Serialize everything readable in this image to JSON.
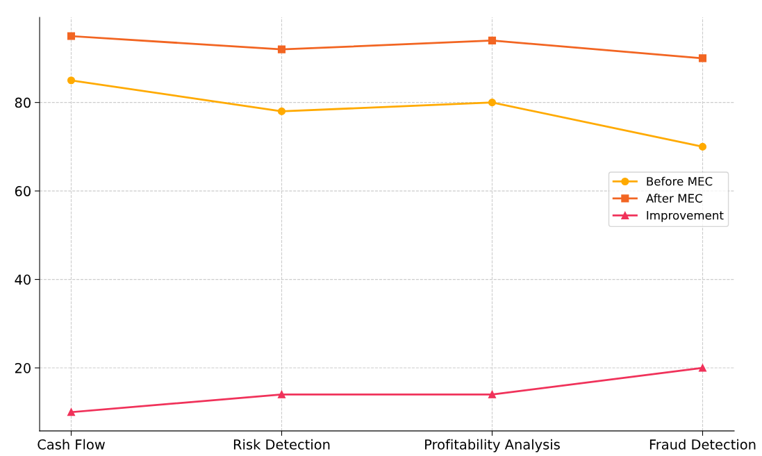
{
  "chart_data": {
    "type": "line",
    "categories": [
      "Cash Flow",
      "Risk Detection",
      "Profitability Analysis",
      "Fraud Detection"
    ],
    "series": [
      {
        "name": "Before MEC",
        "color": "#ffaa00",
        "marker": "circle",
        "values": [
          85,
          78,
          80,
          70
        ]
      },
      {
        "name": "After MEC",
        "color": "#f26522",
        "marker": "square",
        "values": [
          95,
          92,
          94,
          90
        ]
      },
      {
        "name": "Improvement",
        "color": "#f0325a",
        "marker": "triangle",
        "values": [
          10,
          14,
          14,
          20
        ]
      }
    ],
    "ylim": [
      5.75,
      99.25
    ],
    "yticks": [
      20,
      40,
      60,
      80
    ],
    "grid": true,
    "legend": "right",
    "line_style": "solid"
  }
}
